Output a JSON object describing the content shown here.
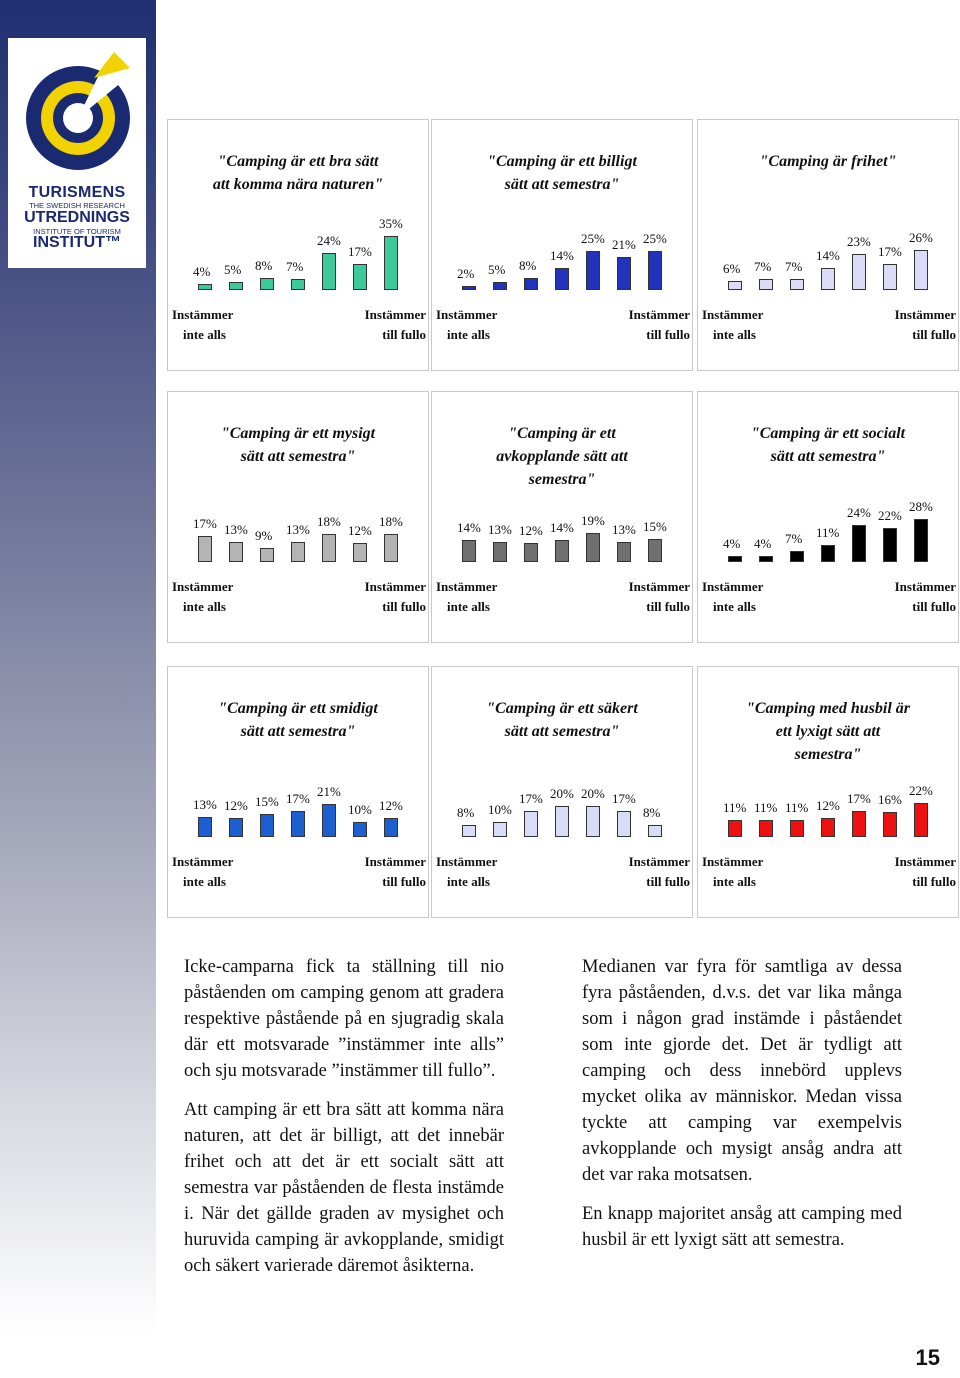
{
  "logo": {
    "line1": "TURISMENS",
    "line2": "THE SWEDISH RESEARCH",
    "line3": "UTREDNINGS",
    "line4": "INSTITUTE OF TOURISM",
    "line5": "INSTITUT™"
  },
  "axis": {
    "left_l1": "Instämmer",
    "left_l2": "inte alls",
    "right_l1": "Instämmer",
    "right_l2": "till fullo"
  },
  "chart_data": [
    {
      "type": "bar",
      "title": "\"Camping är ett bra sätt att komma nära naturen\"",
      "color": "#3ec99a",
      "categories": [
        "1",
        "2",
        "3",
        "4",
        "5",
        "6",
        "7"
      ],
      "values": [
        4,
        5,
        8,
        7,
        24,
        17,
        35
      ],
      "labels": [
        "4%",
        "5%",
        "8%",
        "7%",
        "24%",
        "17%",
        "35%"
      ]
    },
    {
      "type": "bar",
      "title": "\"Camping är ett billigt sätt att semestra\"",
      "color": "#2233bb",
      "categories": [
        "1",
        "2",
        "3",
        "4",
        "5",
        "6",
        "7"
      ],
      "values": [
        2,
        5,
        8,
        14,
        25,
        21,
        25
      ],
      "labels": [
        "2%",
        "5%",
        "8%",
        "14%",
        "25%",
        "21%",
        "25%"
      ]
    },
    {
      "type": "bar",
      "title": "\"Camping är frihet\"",
      "color": "#dcdcf8",
      "categories": [
        "1",
        "2",
        "3",
        "4",
        "5",
        "6",
        "7"
      ],
      "values": [
        6,
        7,
        7,
        14,
        23,
        17,
        26
      ],
      "labels": [
        "6%",
        "7%",
        "7%",
        "14%",
        "23%",
        "17%",
        "26%"
      ]
    },
    {
      "type": "bar",
      "title": "\"Camping är ett mysigt sätt att semestra\"",
      "color": "#b4b4b4",
      "categories": [
        "1",
        "2",
        "3",
        "4",
        "5",
        "6",
        "7"
      ],
      "values": [
        17,
        13,
        9,
        13,
        18,
        12,
        18
      ],
      "labels": [
        "17%",
        "13%",
        "9%",
        "13%",
        "18%",
        "12%",
        "18%"
      ]
    },
    {
      "type": "bar",
      "title": "\"Camping är ett avkopplande sätt att semestra\"",
      "color": "#707070",
      "categories": [
        "1",
        "2",
        "3",
        "4",
        "5",
        "6",
        "7"
      ],
      "values": [
        14,
        13,
        12,
        14,
        19,
        13,
        15
      ],
      "labels": [
        "14%",
        "13%",
        "12%",
        "14%",
        "19%",
        "13%",
        "15%"
      ]
    },
    {
      "type": "bar",
      "title": "\"Camping är ett socialt sätt att semestra\"",
      "color": "#000000",
      "categories": [
        "1",
        "2",
        "3",
        "4",
        "5",
        "6",
        "7"
      ],
      "values": [
        4,
        4,
        7,
        11,
        24,
        22,
        28
      ],
      "labels": [
        "4%",
        "4%",
        "7%",
        "11%",
        "24%",
        "22%",
        "28%"
      ]
    },
    {
      "type": "bar",
      "title": "\"Camping är ett smidigt sätt att semestra\"",
      "color": "#1c5fd0",
      "categories": [
        "1",
        "2",
        "3",
        "4",
        "5",
        "6",
        "7"
      ],
      "values": [
        13,
        12,
        15,
        17,
        21,
        10,
        12
      ],
      "labels": [
        "13%",
        "12%",
        "15%",
        "17%",
        "21%",
        "10%",
        "12%"
      ]
    },
    {
      "type": "bar",
      "title": "\"Camping är ett säkert sätt att semestra\"",
      "color": "#d8dcf8",
      "categories": [
        "1",
        "2",
        "3",
        "4",
        "5",
        "6",
        "7"
      ],
      "values": [
        8,
        10,
        17,
        20,
        20,
        17,
        8
      ],
      "labels": [
        "8%",
        "10%",
        "17%",
        "20%",
        "20%",
        "17%",
        "8%"
      ]
    },
    {
      "type": "bar",
      "title": "\"Camping med husbil är ett lyxigt sätt att semestra\"",
      "color": "#ee1111",
      "categories": [
        "1",
        "2",
        "3",
        "4",
        "5",
        "6",
        "7"
      ],
      "values": [
        11,
        11,
        11,
        12,
        17,
        16,
        22
      ],
      "labels": [
        "11%",
        "11%",
        "11%",
        "12%",
        "17%",
        "16%",
        "22%"
      ]
    }
  ],
  "text": {
    "left_p1": "Icke-camparna fick ta ställning till nio påståenden om camping genom att gradera respektive påstående på en sjugradig skala där ett motsvarade ”instämmer inte alls” och sju motsvarade ”instämmer till fullo”.",
    "left_p2": "Att camping är ett bra sätt att komma nära naturen, att det är billigt, att det innebär frihet och att det är ett socialt sätt att semestra var påståenden de flesta instämde i. När det gällde graden av mysighet och huruvida camping är avkopplande, smidigt och säkert varierade däremot åsikterna.",
    "right_p1": "Medianen var fyra för samtliga av dessa fyra påståenden, d.v.s. det var lika många som i någon grad instämde i påståendet som inte gjorde det. Det är tydligt att camping och dess innebörd upplevs mycket olika av människor. Medan vissa tyckte att camping var exempelvis avkopplande och mysigt ansåg andra att det var raka motsatsen.",
    "right_p2": "En knapp majoritet ansåg att camping med husbil är ett lyxigt sätt att semestra."
  },
  "page_number": "15"
}
